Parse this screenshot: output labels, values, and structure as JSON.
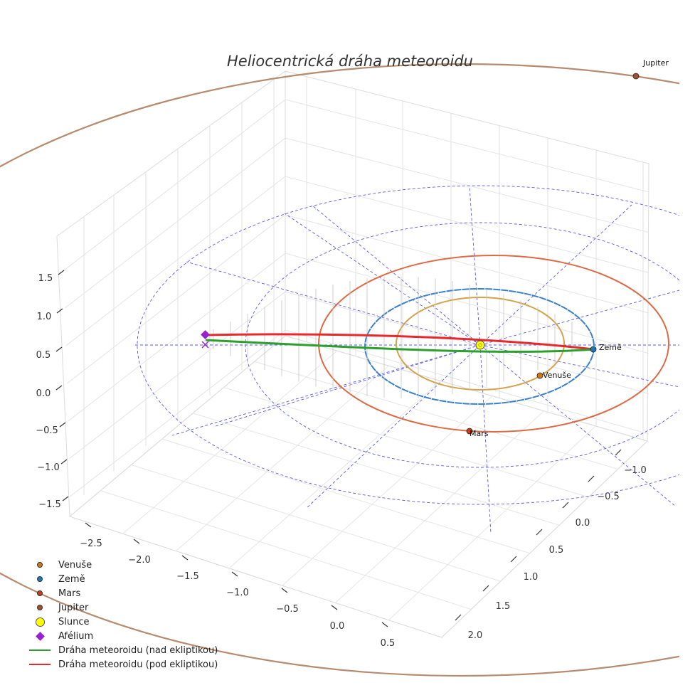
{
  "chart_data": {
    "type": "scatter",
    "title": "Heliocentrická dráha meteoroidu",
    "projection": "3d",
    "axes": {
      "x_ticks": [
        "−2.5",
        "−2.0",
        "−1.5",
        "−1.0",
        "−0.5",
        "0.0",
        "0.5"
      ],
      "y_ticks": [
        "−1.0",
        "−0.5",
        "0.0",
        "0.5",
        "1.0",
        "1.5",
        "2.0"
      ],
      "z_ticks": [
        "1.5",
        "1.0",
        "0.5",
        "0.0",
        "−0.5",
        "−1.0",
        "−1.5"
      ],
      "xlim": [
        -2.6,
        0.7
      ],
      "ylim": [
        -1.3,
        2.2
      ],
      "zlim": [
        -1.7,
        1.9
      ]
    },
    "bodies": [
      {
        "name": "Venuše",
        "color": "#cc7a17",
        "orbit_color": "#d4a24a",
        "label": "Venuše",
        "x": 0.55,
        "y": 0.45,
        "z": 0
      },
      {
        "name": "Země",
        "color": "#1f77b4",
        "orbit_color": "#3a80cc",
        "label": "Země",
        "x": 0.0,
        "y": 1.0,
        "z": 0
      },
      {
        "name": "Mars",
        "color": "#cc3a14",
        "orbit_color": "#de6a45",
        "label": "Mars",
        "x": 1.2,
        "y": -0.6,
        "z": 0
      },
      {
        "name": "Jupiter",
        "color": "#a0522d",
        "orbit_color": "#b88a6e",
        "label": "Jupiter",
        "x": -3.2,
        "y": 4.0,
        "z": 0
      },
      {
        "name": "Slunce",
        "color": "#ffff00",
        "label": "Slunce",
        "x": 0,
        "y": 0,
        "z": 0
      }
    ],
    "meteoroid": {
      "above_name": "Dráha meteoroidu (nad ekliptikou)",
      "above_color": "#2ca02c",
      "below_name": "Dráha meteoroidu (pod ekliptikou)",
      "below_color": "#e8282b",
      "perihelion_au": 1.0,
      "aphelion_au": 2.5
    },
    "aphelion": {
      "name": "Afélium",
      "color": "#9b1fd0"
    },
    "legend": [
      {
        "label": "Venuše",
        "kind": "dot",
        "color": "#cc7a17"
      },
      {
        "label": "Země",
        "kind": "dot",
        "color": "#1f77b4"
      },
      {
        "label": "Mars",
        "kind": "dot",
        "color": "#cc3a14"
      },
      {
        "label": "Jupiter",
        "kind": "dot",
        "color": "#a0522d"
      },
      {
        "label": "Slunce",
        "kind": "bigdot",
        "color": "#ffff00"
      },
      {
        "label": "Afélium",
        "kind": "diamond",
        "color": "#9b1fd0"
      },
      {
        "label": "Dráha meteoroidu (nad ekliptikou)",
        "kind": "line",
        "color": "#2ca02c"
      },
      {
        "label": "Dráha meteoroidu (pod ekliptikou)",
        "kind": "line",
        "color": "#e8282b"
      }
    ],
    "legend_position": "bottom-left"
  }
}
